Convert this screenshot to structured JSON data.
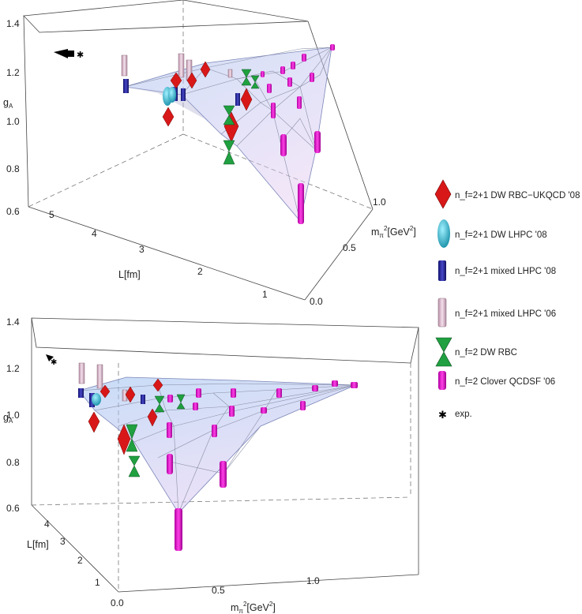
{
  "chart_data": [
    {
      "type": "scatter",
      "title": "",
      "zlabel": "g_A",
      "xlabel": "m_π²[GeV²]",
      "ylabel": "L[fm]",
      "zlim": [
        0.6,
        1.4
      ],
      "z_ticks": [
        "0.6",
        "0.8",
        "1.0",
        "1.2",
        "1.4"
      ],
      "x_ticks": [
        "0.0",
        "0.5",
        "1.0"
      ],
      "y_ticks": [
        "1",
        "2",
        "3",
        "4",
        "5"
      ]
    },
    {
      "type": "scatter",
      "title": "",
      "zlabel": "g_A",
      "xlabel": "m_π²[GeV²]",
      "ylabel": "L[fm]",
      "zlim": [
        0.6,
        1.4
      ],
      "z_ticks": [
        "0.6",
        "0.8",
        "1.0",
        "1.2",
        "1.4"
      ],
      "x_ticks": [
        "0.0",
        "0.5",
        "1.0"
      ],
      "y_ticks": [
        "1",
        "2",
        "3",
        "4"
      ]
    }
  ],
  "series": [
    {
      "name": "RBC-UKQCD",
      "color": "#e02020",
      "marker": "diamond-icon",
      "points": [
        [
          0.18,
          2.7,
          1.13
        ],
        [
          0.26,
          2.7,
          1.15
        ],
        [
          0.33,
          2.7,
          1.15
        ],
        [
          0.1,
          1.8,
          0.98
        ],
        [
          0.18,
          1.8,
          1.04
        ],
        [
          0.25,
          1.8,
          1.07
        ],
        [
          0.09,
          2.7,
          1.19
        ]
      ]
    },
    {
      "name": "LHPC DW",
      "color": "#30b8c8",
      "marker": "ellipsoid-icon",
      "points": [
        [
          0.14,
          3.5,
          1.12
        ],
        [
          0.18,
          3.5,
          1.14
        ]
      ]
    },
    {
      "name": "LHPC mixed 08",
      "color": "#2828a0",
      "marker": "cylinder-icon",
      "points": [
        [
          0.12,
          3.5,
          1.15
        ],
        [
          0.17,
          3.5,
          1.14
        ],
        [
          0.12,
          4.5,
          1.17
        ],
        [
          0.2,
          4.5,
          1.16
        ]
      ]
    },
    {
      "name": "LHPC mixed 06",
      "color": "#d8b0c8",
      "marker": "cylinder-icon",
      "points": [
        [
          0.1,
          4.7,
          1.22
        ],
        [
          0.16,
          3.5,
          1.21
        ],
        [
          0.22,
          2.5,
          1.2
        ],
        [
          0.3,
          2.5,
          1.2
        ]
      ]
    },
    {
      "name": "DW RBC",
      "color": "#20a040",
      "marker": "double-cone-icon",
      "points": [
        [
          0.26,
          1.9,
          0.95
        ],
        [
          0.35,
          1.9,
          1.01
        ],
        [
          0.47,
          1.9,
          1.08
        ],
        [
          0.58,
          1.9,
          1.11
        ],
        [
          0.3,
          2.7,
          1.17
        ],
        [
          0.42,
          2.7,
          1.15
        ],
        [
          0.55,
          2.7,
          1.16
        ]
      ]
    },
    {
      "name": "QCDSF Clover",
      "color": "#e010c8",
      "marker": "cylinder-icon",
      "points": [
        [
          0.4,
          1.3,
          0.62
        ],
        [
          0.55,
          1.3,
          0.92
        ],
        [
          0.9,
          1.4,
          1.0
        ],
        [
          0.75,
          2.0,
          1.05
        ],
        [
          0.95,
          2.0,
          1.12
        ],
        [
          0.6,
          2.3,
          1.1
        ],
        [
          1.15,
          2.3,
          1.18
        ],
        [
          0.7,
          2.8,
          1.15
        ],
        [
          0.85,
          2.9,
          1.17
        ],
        [
          1.1,
          3.2,
          1.2
        ],
        [
          0.35,
          2.0,
          0.98
        ],
        [
          0.45,
          2.3,
          1.06
        ],
        [
          1.25,
          2.6,
          1.22
        ],
        [
          0.5,
          2.8,
          1.12
        ],
        [
          1.0,
          2.7,
          1.2
        ]
      ]
    }
  ],
  "exp": {
    "mpi2": 0.0,
    "L": 5.0,
    "gA": 1.27
  },
  "legend": [
    {
      "label": "n_f=2+1 DW RBC−UKQCD '08",
      "icon": "red-diamond-icon"
    },
    {
      "label": "n_f=2+1 DW LHPC '08",
      "icon": "cyan-ellipsoid-icon"
    },
    {
      "label": "n_f=2+1 mixed LHPC '08",
      "icon": "blue-cylinder-icon"
    },
    {
      "label": "n_f=2+1 mixed LHPC '06",
      "icon": "pink-cylinder-icon"
    },
    {
      "label": "n_f=2 DW RBC",
      "icon": "green-double-cone-icon"
    },
    {
      "label": "n_f=2 Clover QCDSF '06",
      "icon": "magenta-cylinder-icon"
    },
    {
      "label": "exp.",
      "icon": "asterisk-icon"
    }
  ],
  "colors": {
    "surface_fill": "#a8c4f0",
    "surface_fill2": "#d8c0ec",
    "mesh": "#8a8fa6"
  }
}
